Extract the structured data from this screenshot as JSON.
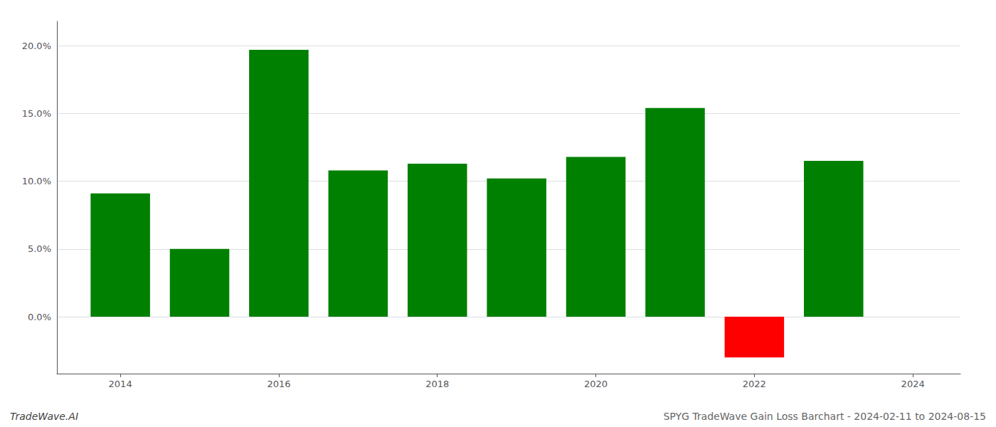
{
  "chart_data": {
    "type": "bar",
    "x": [
      2014,
      2015,
      2016,
      2017,
      2018,
      2019,
      2020,
      2021,
      2022,
      2023
    ],
    "values": [
      0.091,
      0.05,
      0.197,
      0.108,
      0.113,
      0.102,
      0.118,
      0.154,
      -0.03,
      0.115
    ],
    "colors": [
      "#008000",
      "#008000",
      "#008000",
      "#008000",
      "#008000",
      "#008000",
      "#008000",
      "#008000",
      "#ff0000",
      "#008000"
    ],
    "xlim": [
      2013.2,
      2024.6
    ],
    "xticks": [
      2014,
      2016,
      2018,
      2020,
      2022,
      2024
    ],
    "ylim": [
      -0.042,
      0.218
    ],
    "yticks": [
      {
        "value": 0.0,
        "label": "0.0%"
      },
      {
        "value": 0.05,
        "label": "5.0%"
      },
      {
        "value": 0.1,
        "label": "10.0%"
      },
      {
        "value": 0.15,
        "label": "15.0%"
      },
      {
        "value": 0.2,
        "label": "20.0%"
      }
    ],
    "grid": true,
    "annotations": [
      "TradeWave.AI",
      "SPYG TradeWave Gain Loss Barchart - 2024-02-11 to 2024-08-15"
    ]
  }
}
